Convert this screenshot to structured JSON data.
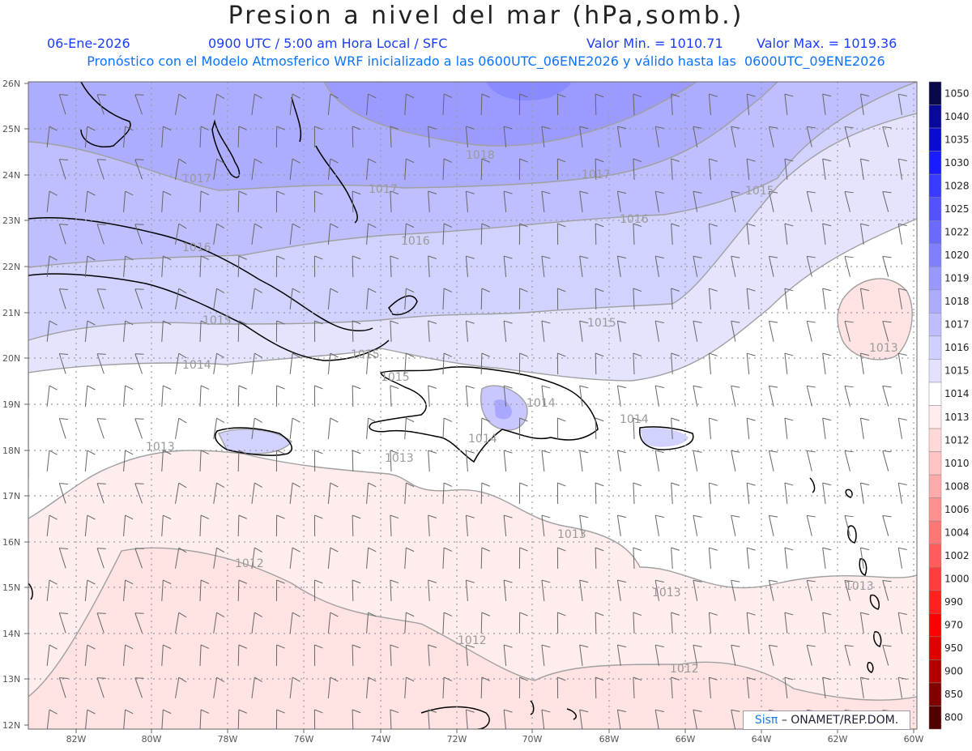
{
  "header": {
    "title": "Presion a nivel del mar (hPa,somb.)",
    "date": "06-Ene-2026",
    "time": "0900 UTC / 5:00 am Hora Local / SFC",
    "valmin": "Valor Min. = 1010.71",
    "valmax": "Valor Max. = 1019.36",
    "model_line": "Pronóstico con el Modelo Atmosferico WRF inicializado a las 0600UTC_06ENE2026 y válido hasta las  0600UTC_09ENE2026"
  },
  "credit": {
    "logo": "Sisπ",
    "text": "– ONAMET/REP.DOM."
  },
  "axes": {
    "lat_labels": [
      "26N",
      "25N",
      "24N",
      "23N",
      "22N",
      "21N",
      "20N",
      "19N",
      "18N",
      "17N",
      "16N",
      "15N",
      "14N",
      "13N",
      "12N"
    ],
    "lon_labels": [
      "82W",
      "80W",
      "78W",
      "76W",
      "74W",
      "72W",
      "70W",
      "68W",
      "66W",
      "64W",
      "62W",
      "60W"
    ]
  },
  "colorbar": {
    "labels": [
      "1050",
      "1040",
      "1035",
      "1030",
      "1028",
      "1025",
      "1022",
      "1020",
      "1019",
      "1018",
      "1017",
      "1016",
      "1015",
      "1014",
      "1013",
      "1012",
      "1010",
      "1008",
      "1006",
      "1004",
      "1002",
      "1000",
      "990",
      "970",
      "950",
      "900",
      "850",
      "800"
    ],
    "colors": [
      "#080847",
      "#08089a",
      "#0a0ad4",
      "#1b1bff",
      "#3a3aff",
      "#5252ff",
      "#6a6aff",
      "#8080ff",
      "#9898ff",
      "#acacff",
      "#bdbdff",
      "#d0d0ff",
      "#e2e2ff",
      "#ffffff",
      "#ffeded",
      "#ffd8d8",
      "#ffc4c4",
      "#ffaaaa",
      "#ff9090",
      "#ff7676",
      "#ff5c5c",
      "#ff3d3d",
      "#ff2020",
      "#ff0000",
      "#e00000",
      "#b00000",
      "#800000",
      "#500000"
    ]
  },
  "contour_labels": [
    {
      "text": "1018"
    },
    {
      "text": "1017"
    },
    {
      "text": "1017"
    },
    {
      "text": "1017"
    },
    {
      "text": "1016"
    },
    {
      "text": "1016"
    },
    {
      "text": "1016"
    },
    {
      "text": "1015"
    },
    {
      "text": "1015"
    },
    {
      "text": "1015"
    },
    {
      "text": "1015"
    },
    {
      "text": "1015"
    },
    {
      "text": "1014"
    },
    {
      "text": "1014"
    },
    {
      "text": "1014"
    },
    {
      "text": "1013"
    },
    {
      "text": "1013"
    },
    {
      "text": "1013"
    },
    {
      "text": "1013"
    },
    {
      "text": "1013"
    },
    {
      "text": "1013"
    },
    {
      "text": "1012"
    },
    {
      "text": "1012"
    },
    {
      "text": "1012"
    },
    {
      "text": "1014"
    }
  ]
}
